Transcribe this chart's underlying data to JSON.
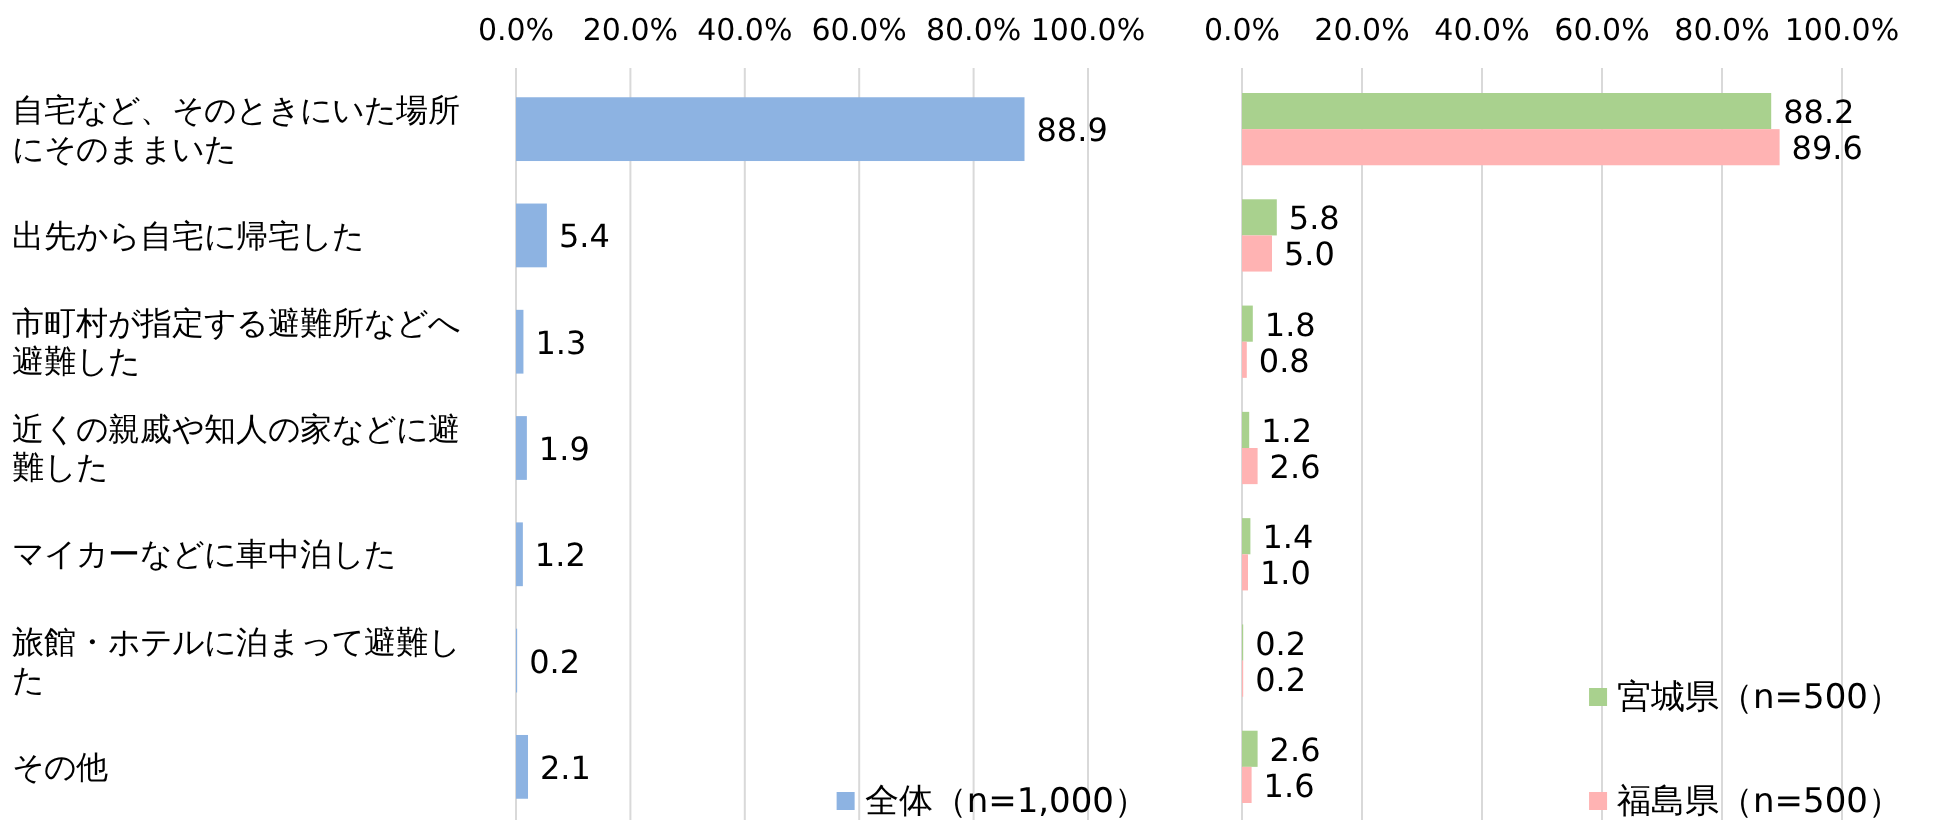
{
  "chart_data": [
    {
      "type": "bar",
      "orientation": "horizontal",
      "categories": [
        "自宅など、そのときにいた場所にそのままいた",
        "出先から自宅に帰宅した",
        "市町村が指定する避難所などへ避難した",
        "近くの親戚や知人の家などに避難した",
        "マイカーなどに車中泊した",
        "旅館・ホテルに泊まって避難した",
        "その他"
      ],
      "series": [
        {
          "name": "全体（n=1,000）",
          "color": "#8db3e2",
          "values": [
            88.9,
            5.4,
            1.3,
            1.9,
            1.2,
            0.2,
            2.1
          ],
          "value_labels": [
            "88.9",
            "5.4",
            "1.3",
            "1.9",
            "1.2",
            "0.2",
            "2.1"
          ]
        }
      ],
      "xlim": [
        0,
        100
      ],
      "xticks": [
        {
          "value": 0,
          "label": "0.0%"
        },
        {
          "value": 20,
          "label": "20.0%"
        },
        {
          "value": 40,
          "label": "40.0%"
        },
        {
          "value": 60,
          "label": "60.0%"
        },
        {
          "value": 80,
          "label": "80.0%"
        },
        {
          "value": 100,
          "label": "100.0%"
        }
      ],
      "grid": "x",
      "legend": "bottom right"
    },
    {
      "type": "bar",
      "orientation": "horizontal",
      "categories": [
        null,
        null,
        null,
        null,
        null,
        null,
        null
      ],
      "series": [
        {
          "name": "宮城県（n=500）",
          "color": "#a9d18e",
          "values": [
            88.2,
            5.8,
            1.8,
            1.2,
            1.4,
            0.2,
            2.6
          ],
          "value_labels": [
            "88.2",
            "5.8",
            "1.8",
            "1.2",
            "1.4",
            "0.2",
            "2.6"
          ]
        },
        {
          "name": "福島県（n=500）",
          "color": "#ffb3b3",
          "values": [
            89.6,
            5.0,
            0.8,
            2.6,
            1.0,
            0.2,
            1.6
          ],
          "value_labels": [
            "89.6",
            "5.0",
            "0.8",
            "2.6",
            "1.0",
            "0.2",
            "1.6"
          ]
        }
      ],
      "xlim": [
        0,
        100
      ],
      "xticks": [
        {
          "value": 0,
          "label": "0.0%"
        },
        {
          "value": 20,
          "label": "20.0%"
        },
        {
          "value": 40,
          "label": "40.0%"
        },
        {
          "value": 60,
          "label": "60.0%"
        },
        {
          "value": 80,
          "label": "80.0%"
        },
        {
          "value": 100,
          "label": "100.0%"
        }
      ],
      "grid": "x",
      "legend": "bottom right",
      "tick_labels": "x"
    }
  ]
}
